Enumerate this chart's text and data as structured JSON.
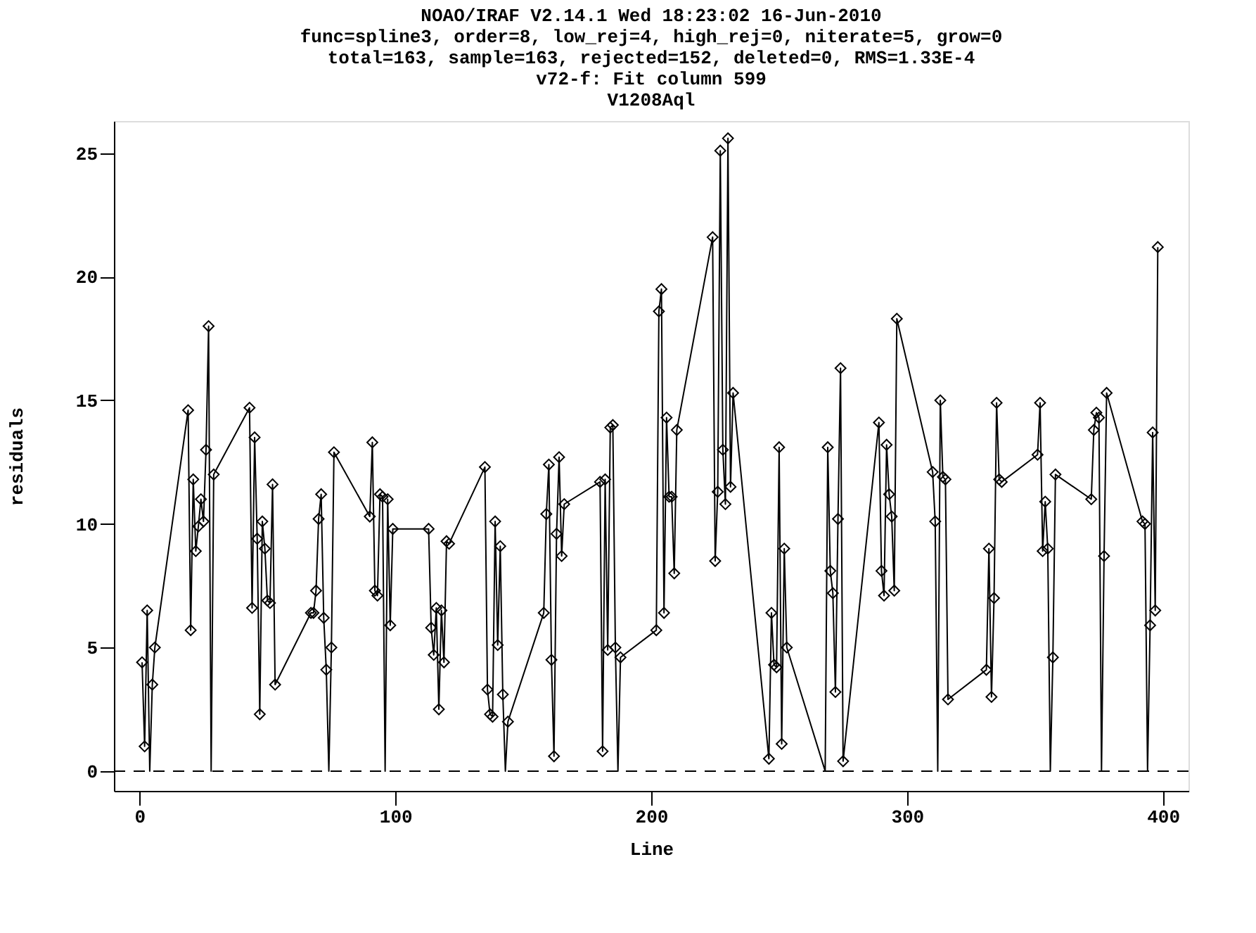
{
  "chart_data": {
    "type": "line",
    "title": "NOAO/IRAF V2.14.1 Wed 18:23:02 16-Jun-2010\nfunc=spline3, order=8, low_rej=4, high_rej=0, niterate=5, grow=0\ntotal=163, sample=163, rejected=152, deleted=0, RMS=1.33E-4\nv72-f: Fit column 599\nV1208Aql",
    "xlabel": "Line",
    "ylabel": "residuals",
    "x": [
      1,
      2,
      3,
      4,
      5,
      6,
      19,
      20,
      21,
      22,
      23,
      24,
      25,
      26,
      27,
      28,
      29,
      43,
      44,
      45,
      46,
      47,
      48,
      49,
      50,
      51,
      52,
      53,
      67,
      68,
      69,
      70,
      71,
      72,
      73,
      74,
      75,
      76,
      90,
      91,
      92,
      93,
      94,
      95,
      96,
      97,
      98,
      99,
      113,
      114,
      115,
      116,
      117,
      118,
      119,
      120,
      121,
      135,
      136,
      137,
      138,
      139,
      140,
      141,
      142,
      143,
      144,
      158,
      159,
      160,
      161,
      162,
      163,
      164,
      165,
      166,
      180,
      181,
      182,
      183,
      184,
      185,
      186,
      187,
      188,
      202,
      203,
      204,
      205,
      206,
      207,
      208,
      209,
      210,
      224,
      225,
      226,
      227,
      228,
      229,
      230,
      231,
      232,
      246,
      247,
      248,
      249,
      250,
      251,
      252,
      253,
      268,
      269,
      270,
      271,
      272,
      273,
      274,
      275,
      289,
      290,
      291,
      292,
      293,
      294,
      295,
      296,
      310,
      311,
      312,
      313,
      314,
      315,
      316,
      331,
      332,
      333,
      334,
      335,
      336,
      337,
      351,
      352,
      353,
      354,
      355,
      356,
      357,
      358,
      372,
      373,
      374,
      375,
      376,
      377,
      378,
      392,
      393,
      394,
      395,
      396,
      397,
      398
    ],
    "series": [
      {
        "color": "#000000",
        "marker": "none",
        "line_style": "solid",
        "values": [
          4.4,
          1.0,
          6.5,
          0,
          3.5,
          5.0,
          14.6,
          5.7,
          11.8,
          8.9,
          9.9,
          11.0,
          10.1,
          13.0,
          18.0,
          0,
          12.0,
          14.7,
          6.6,
          13.5,
          9.4,
          2.3,
          10.1,
          9.0,
          6.9,
          6.8,
          11.6,
          3.5,
          6.4,
          6.4,
          7.3,
          10.2,
          11.2,
          6.2,
          4.1,
          0,
          5.0,
          12.9,
          10.3,
          13.3,
          7.3,
          7.1,
          11.2,
          11.1,
          0,
          11.0,
          5.9,
          9.8,
          9.8,
          5.8,
          4.7,
          6.6,
          2.5,
          6.5,
          4.4,
          9.3,
          9.2,
          12.3,
          3.3,
          2.3,
          2.2,
          10.1,
          5.1,
          9.1,
          3.1,
          0,
          2.0,
          6.4,
          10.4,
          12.4,
          4.5,
          0.6,
          9.6,
          12.7,
          8.7,
          10.8,
          11.7,
          0.8,
          11.8,
          4.9,
          13.9,
          14.0,
          5.0,
          0,
          4.6,
          5.7,
          18.6,
          19.5,
          6.4,
          14.3,
          11.1,
          11.1,
          8.0,
          13.8,
          21.6,
          8.5,
          11.3,
          25.1,
          13.0,
          10.8,
          25.6,
          11.5,
          15.3,
          0.5,
          6.4,
          4.3,
          4.2,
          13.1,
          1.1,
          9.0,
          5.0,
          0,
          13.1,
          8.1,
          7.2,
          3.2,
          10.2,
          16.3,
          0.4,
          14.1,
          8.1,
          7.1,
          13.2,
          11.2,
          10.3,
          7.3,
          18.3,
          12.1,
          10.1,
          0,
          15.0,
          11.9,
          11.8,
          2.9,
          4.1,
          9.0,
          3.0,
          7.0,
          14.9,
          11.8,
          11.7,
          12.8,
          14.9,
          8.9,
          10.9,
          9.0,
          0,
          4.6,
          12.0,
          11.0,
          13.8,
          14.5,
          14.3,
          0,
          8.7,
          15.3,
          10.1,
          10.0,
          0,
          5.9,
          13.7,
          6.5,
          21.2
        ]
      },
      {
        "type": "scatter",
        "color": "#000000",
        "marker": "diamond",
        "values": [
          4.4,
          1.0,
          6.5,
          null,
          3.5,
          5.0,
          14.6,
          5.7,
          11.8,
          8.9,
          9.9,
          11.0,
          10.1,
          13.0,
          18.0,
          null,
          12.0,
          14.7,
          6.6,
          13.5,
          9.4,
          2.3,
          10.1,
          9.0,
          6.9,
          6.8,
          11.6,
          3.5,
          6.4,
          6.4,
          7.3,
          10.2,
          11.2,
          6.2,
          4.1,
          null,
          5.0,
          12.9,
          10.3,
          13.3,
          7.3,
          7.1,
          11.2,
          11.1,
          null,
          11.0,
          5.9,
          9.8,
          9.8,
          5.8,
          4.7,
          6.6,
          2.5,
          6.5,
          4.4,
          9.3,
          9.2,
          12.3,
          3.3,
          2.3,
          2.2,
          10.1,
          5.1,
          9.1,
          3.1,
          null,
          2.0,
          6.4,
          10.4,
          12.4,
          4.5,
          0.6,
          9.6,
          12.7,
          8.7,
          10.8,
          11.7,
          0.8,
          11.8,
          4.9,
          13.9,
          14.0,
          5.0,
          null,
          4.6,
          5.7,
          18.6,
          19.5,
          6.4,
          14.3,
          11.1,
          11.1,
          8.0,
          13.8,
          21.6,
          8.5,
          11.3,
          25.1,
          13.0,
          10.8,
          25.6,
          11.5,
          15.3,
          0.5,
          6.4,
          4.3,
          4.2,
          13.1,
          1.1,
          9.0,
          5.0,
          null,
          13.1,
          8.1,
          7.2,
          3.2,
          10.2,
          16.3,
          0.4,
          14.1,
          8.1,
          7.1,
          13.2,
          11.2,
          10.3,
          7.3,
          18.3,
          12.1,
          10.1,
          null,
          15.0,
          11.9,
          11.8,
          2.9,
          4.1,
          9.0,
          3.0,
          7.0,
          14.9,
          11.8,
          11.7,
          12.8,
          14.9,
          8.9,
          10.9,
          9.0,
          null,
          4.6,
          12.0,
          11.0,
          13.8,
          14.5,
          14.3,
          null,
          8.7,
          15.3,
          10.1,
          10.0,
          null,
          5.9,
          13.7,
          6.5,
          21.2
        ]
      }
    ],
    "xlim": [
      -10,
      410
    ],
    "ylim": [
      -0.8,
      26.3
    ],
    "xticks": [
      0,
      100,
      200,
      300,
      400
    ],
    "yticks": [
      0,
      5,
      10,
      15,
      20,
      25
    ],
    "ref_lines": [
      {
        "axis": "y",
        "value": 0,
        "color": "#000000",
        "line_style": "dashed"
      }
    ],
    "grid": false
  }
}
